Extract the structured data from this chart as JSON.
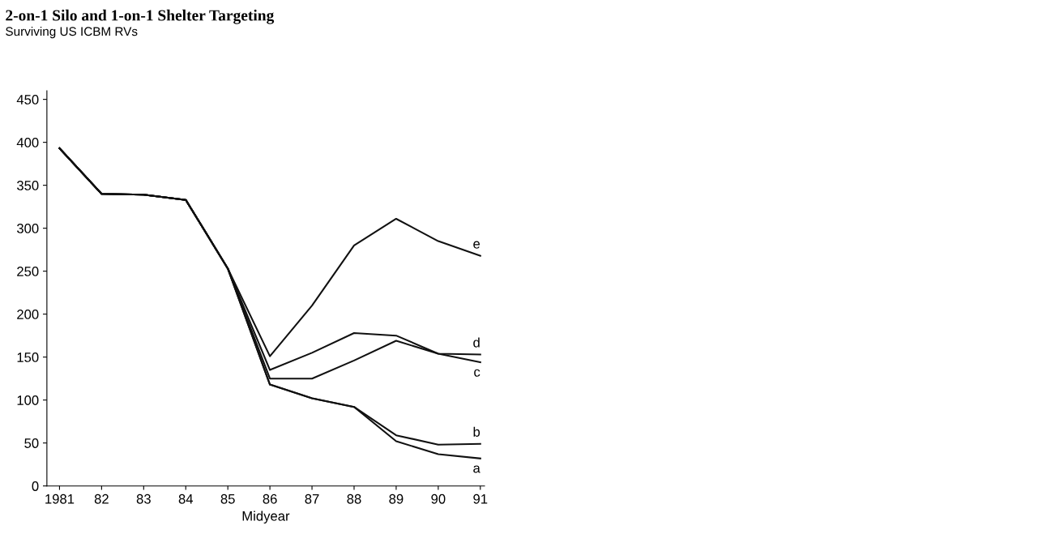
{
  "chart_data": {
    "type": "line",
    "title": "2-on-1 Silo and 1-on-1 Shelter Targeting",
    "subtitle": "Surviving US ICBM RVs",
    "xlabel": "Midyear",
    "categories": [
      "1981",
      "82",
      "83",
      "84",
      "85",
      "86",
      "87",
      "88",
      "89",
      "90",
      "91"
    ],
    "series": [
      {
        "name": "a",
        "color": "#111111",
        "values": [
          393,
          340,
          339,
          333,
          253,
          118,
          102,
          92,
          52,
          37,
          32
        ]
      },
      {
        "name": "b",
        "color": "#111111",
        "values": [
          393,
          340,
          339,
          333,
          253,
          118,
          102,
          92,
          59,
          48,
          49
        ]
      },
      {
        "name": "c",
        "color": "#111111",
        "values": [
          393,
          340,
          339,
          333,
          253,
          125,
          125,
          146,
          169,
          154,
          144
        ]
      },
      {
        "name": "d",
        "color": "#111111",
        "values": [
          393,
          340,
          339,
          333,
          253,
          135,
          155,
          178,
          175,
          154,
          153
        ]
      },
      {
        "name": "e",
        "color": "#111111",
        "values": [
          393,
          340,
          339,
          333,
          253,
          151,
          210,
          280,
          311,
          285,
          268
        ]
      }
    ],
    "ylim": [
      0,
      460
    ],
    "yticks": [
      0,
      50,
      100,
      150,
      200,
      250,
      300,
      350,
      400,
      450
    ],
    "grid": false,
    "legend": false,
    "marker": "none",
    "line_style": "solid"
  }
}
